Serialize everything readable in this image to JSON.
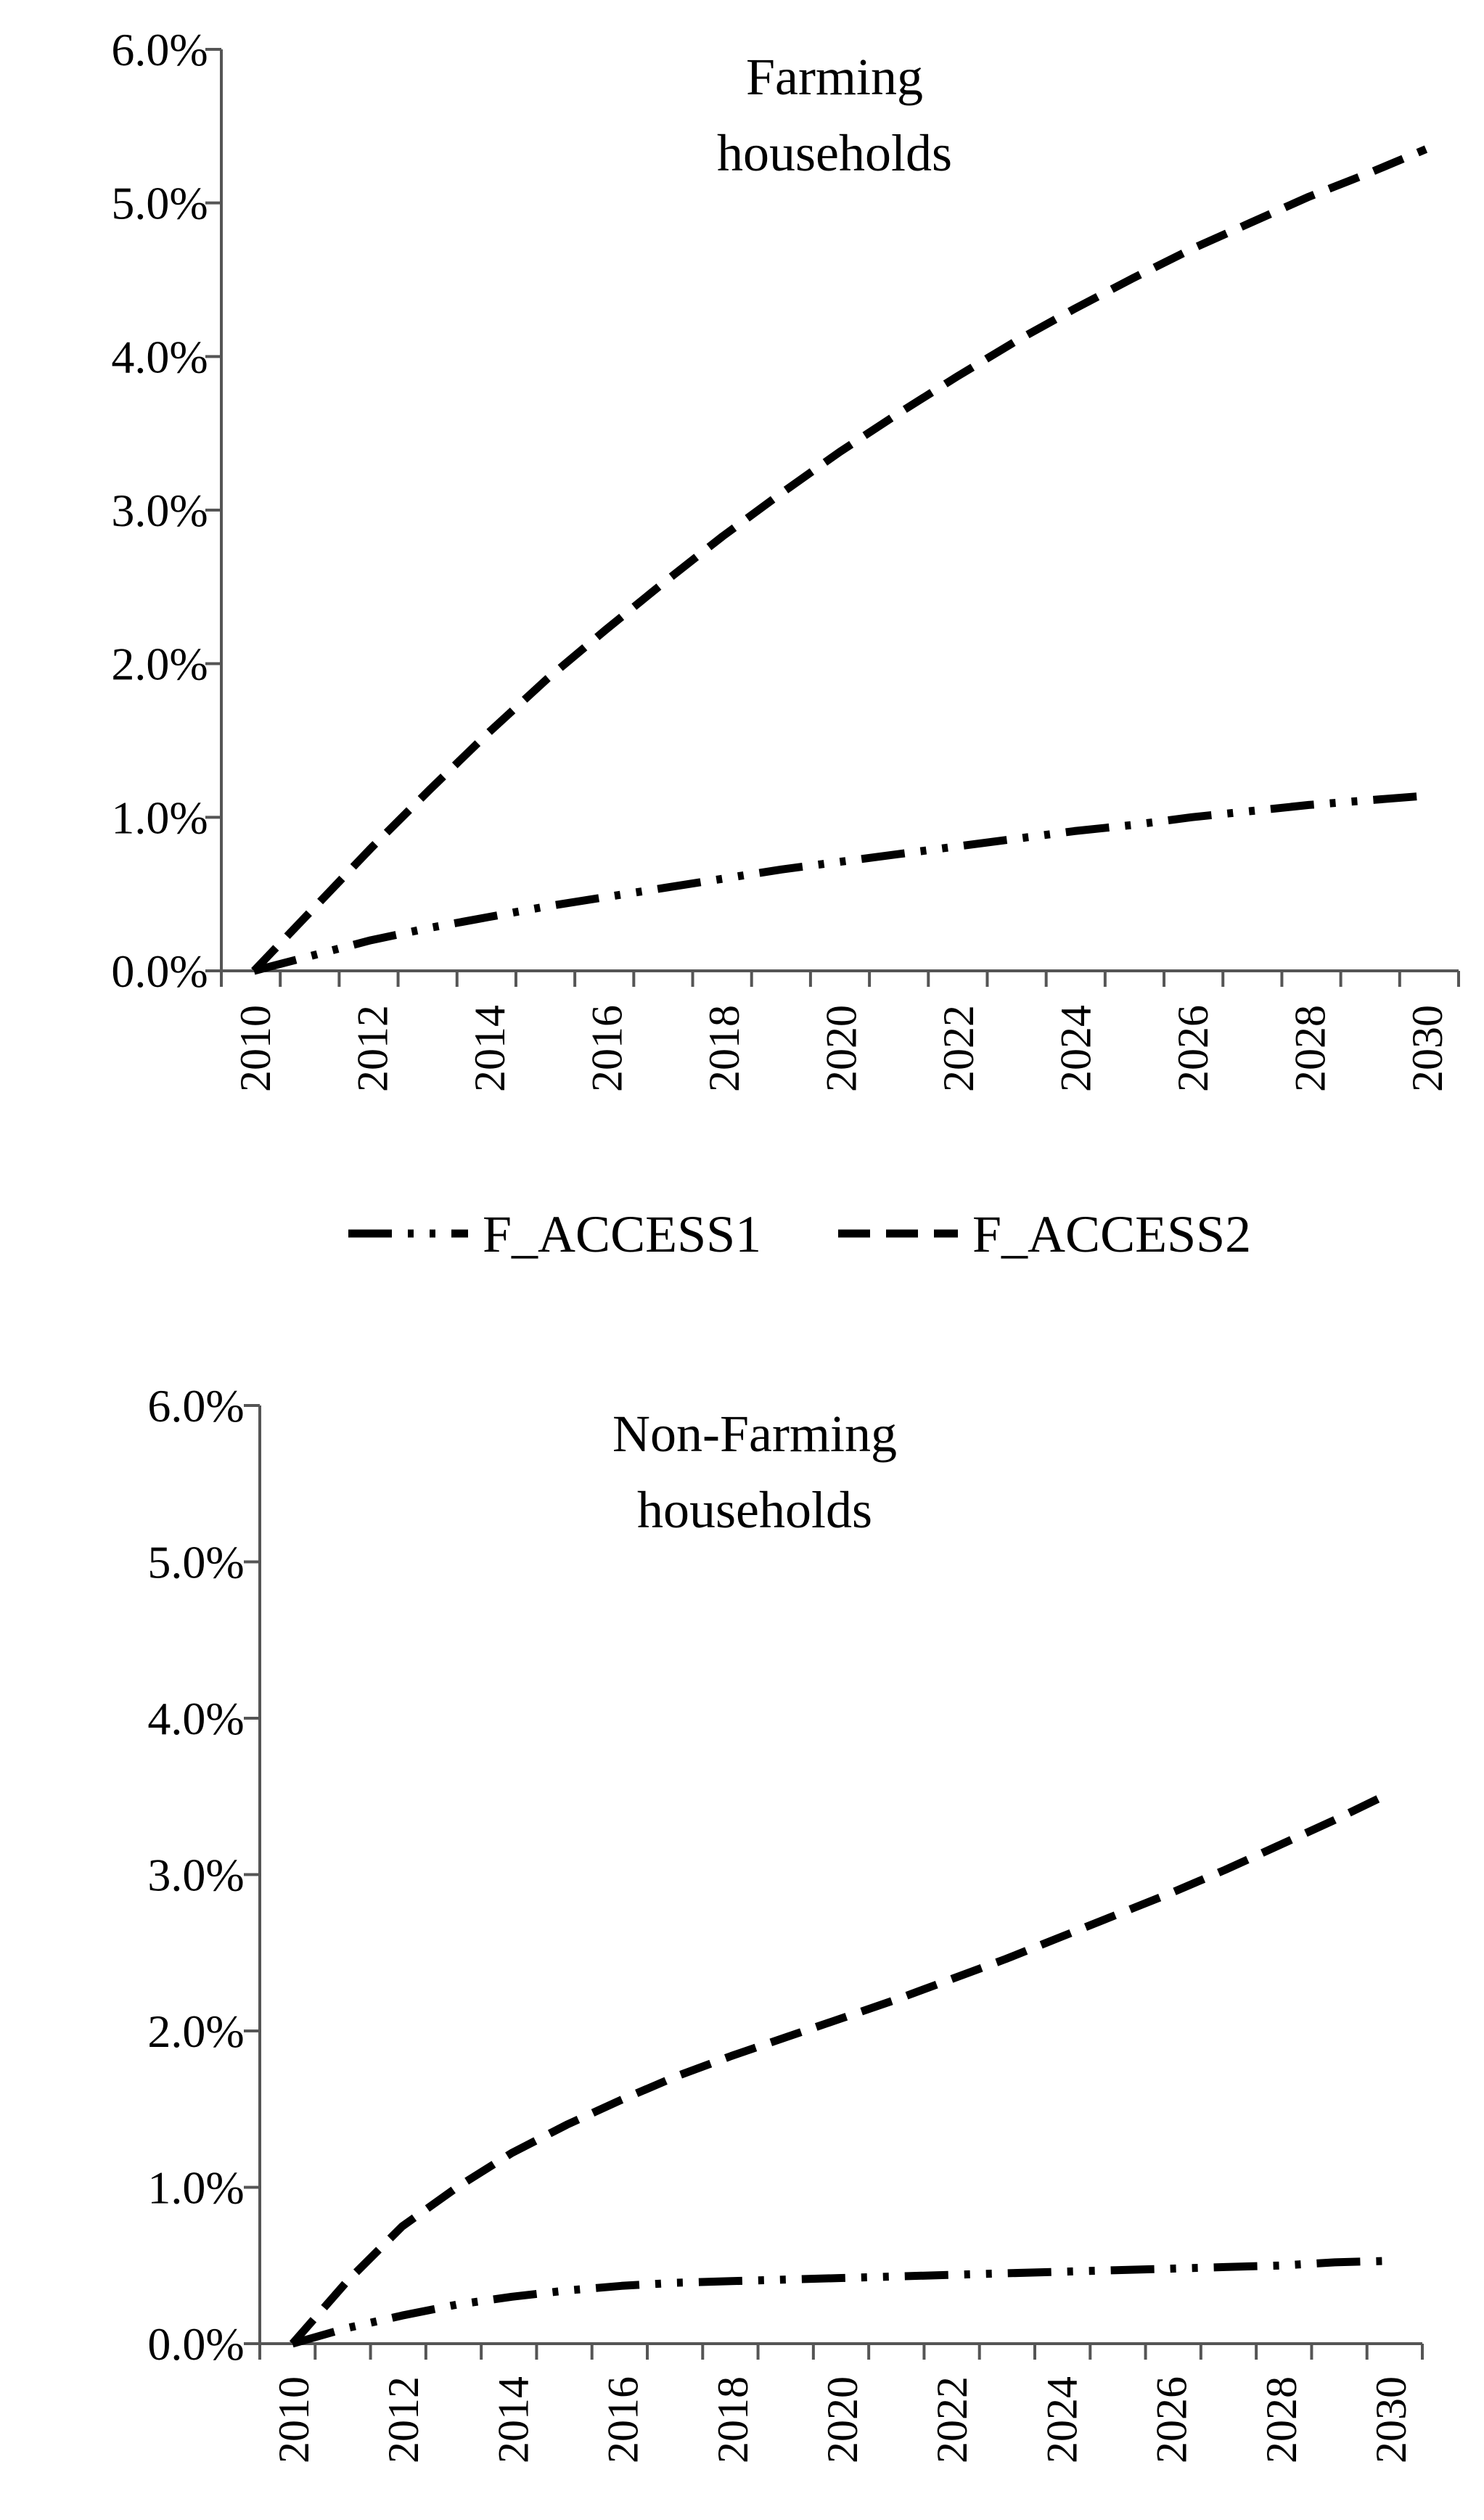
{
  "chart_data": [
    {
      "type": "line",
      "title": "Farming households",
      "title_lines": [
        "Farming",
        "households"
      ],
      "x": [
        2010,
        2011,
        2012,
        2013,
        2014,
        2015,
        2016,
        2017,
        2018,
        2019,
        2020,
        2021,
        2022,
        2023,
        2024,
        2025,
        2026,
        2027,
        2028,
        2029,
        2030
      ],
      "x_tick_labels": [
        "2010",
        "2012",
        "2014",
        "2016",
        "2018",
        "2020",
        "2022",
        "2024",
        "2026",
        "2028",
        "2030"
      ],
      "y_tick_labels": [
        "0.0%",
        "1.0%",
        "2.0%",
        "3.0%",
        "4.0%",
        "5.0%",
        "6.0%"
      ],
      "ylim": [
        0,
        6.0
      ],
      "y_unit": "%",
      "grid": false,
      "series": [
        {
          "name": "F_ACCESS1",
          "values": [
            0.0,
            0.1,
            0.2,
            0.28,
            0.35,
            0.42,
            0.48,
            0.54,
            0.6,
            0.66,
            0.71,
            0.76,
            0.81,
            0.86,
            0.91,
            0.95,
            1.0,
            1.04,
            1.08,
            1.11,
            1.14
          ]
        },
        {
          "name": "F_ACCESS2",
          "values": [
            0.0,
            0.4,
            0.8,
            1.18,
            1.55,
            1.9,
            2.22,
            2.53,
            2.83,
            3.11,
            3.38,
            3.63,
            3.87,
            4.1,
            4.31,
            4.51,
            4.7,
            4.87,
            5.04,
            5.19,
            5.35
          ]
        }
      ],
      "legend": {
        "placement": "bottom",
        "entries": [
          "F_ACCESS1",
          "F_ACCESS2"
        ]
      }
    },
    {
      "type": "line",
      "title": "Non-Farming households",
      "title_lines": [
        "Non-Farming",
        "households"
      ],
      "x": [
        2010,
        2011,
        2012,
        2013,
        2014,
        2015,
        2016,
        2017,
        2018,
        2019,
        2020,
        2021,
        2022,
        2023,
        2024,
        2025,
        2026,
        2027,
        2028,
        2029,
        2030
      ],
      "x_tick_labels": [
        "2010",
        "2012",
        "2014",
        "2016",
        "2018",
        "2020",
        "2022",
        "2024",
        "2026",
        "2028",
        "2030"
      ],
      "y_tick_labels": [
        "0.0%",
        "1.0%",
        "2.0%",
        "3.0%",
        "4.0%",
        "5.0%",
        "6.0%"
      ],
      "ylim": [
        0,
        6.0
      ],
      "y_unit": "%",
      "grid": false,
      "series": [
        {
          "name": "F_ACCESS1",
          "values": [
            0.0,
            0.1,
            0.18,
            0.25,
            0.3,
            0.34,
            0.37,
            0.39,
            0.4,
            0.41,
            0.42,
            0.43,
            0.44,
            0.45,
            0.46,
            0.47,
            0.48,
            0.49,
            0.5,
            0.52,
            0.53
          ]
        },
        {
          "name": "F_ACCESS2",
          "values": [
            0.0,
            0.4,
            0.75,
            1.0,
            1.22,
            1.4,
            1.56,
            1.71,
            1.84,
            1.96,
            2.08,
            2.2,
            2.33,
            2.46,
            2.6,
            2.74,
            2.88,
            3.03,
            3.19,
            3.35,
            3.52
          ]
        }
      ]
    }
  ],
  "line_styles": {
    "F_ACCESS1": "dash-dot-dot",
    "F_ACCESS2": "dashed"
  },
  "colors": {
    "line": "#000000",
    "axis": "#555555",
    "background": "#ffffff"
  }
}
